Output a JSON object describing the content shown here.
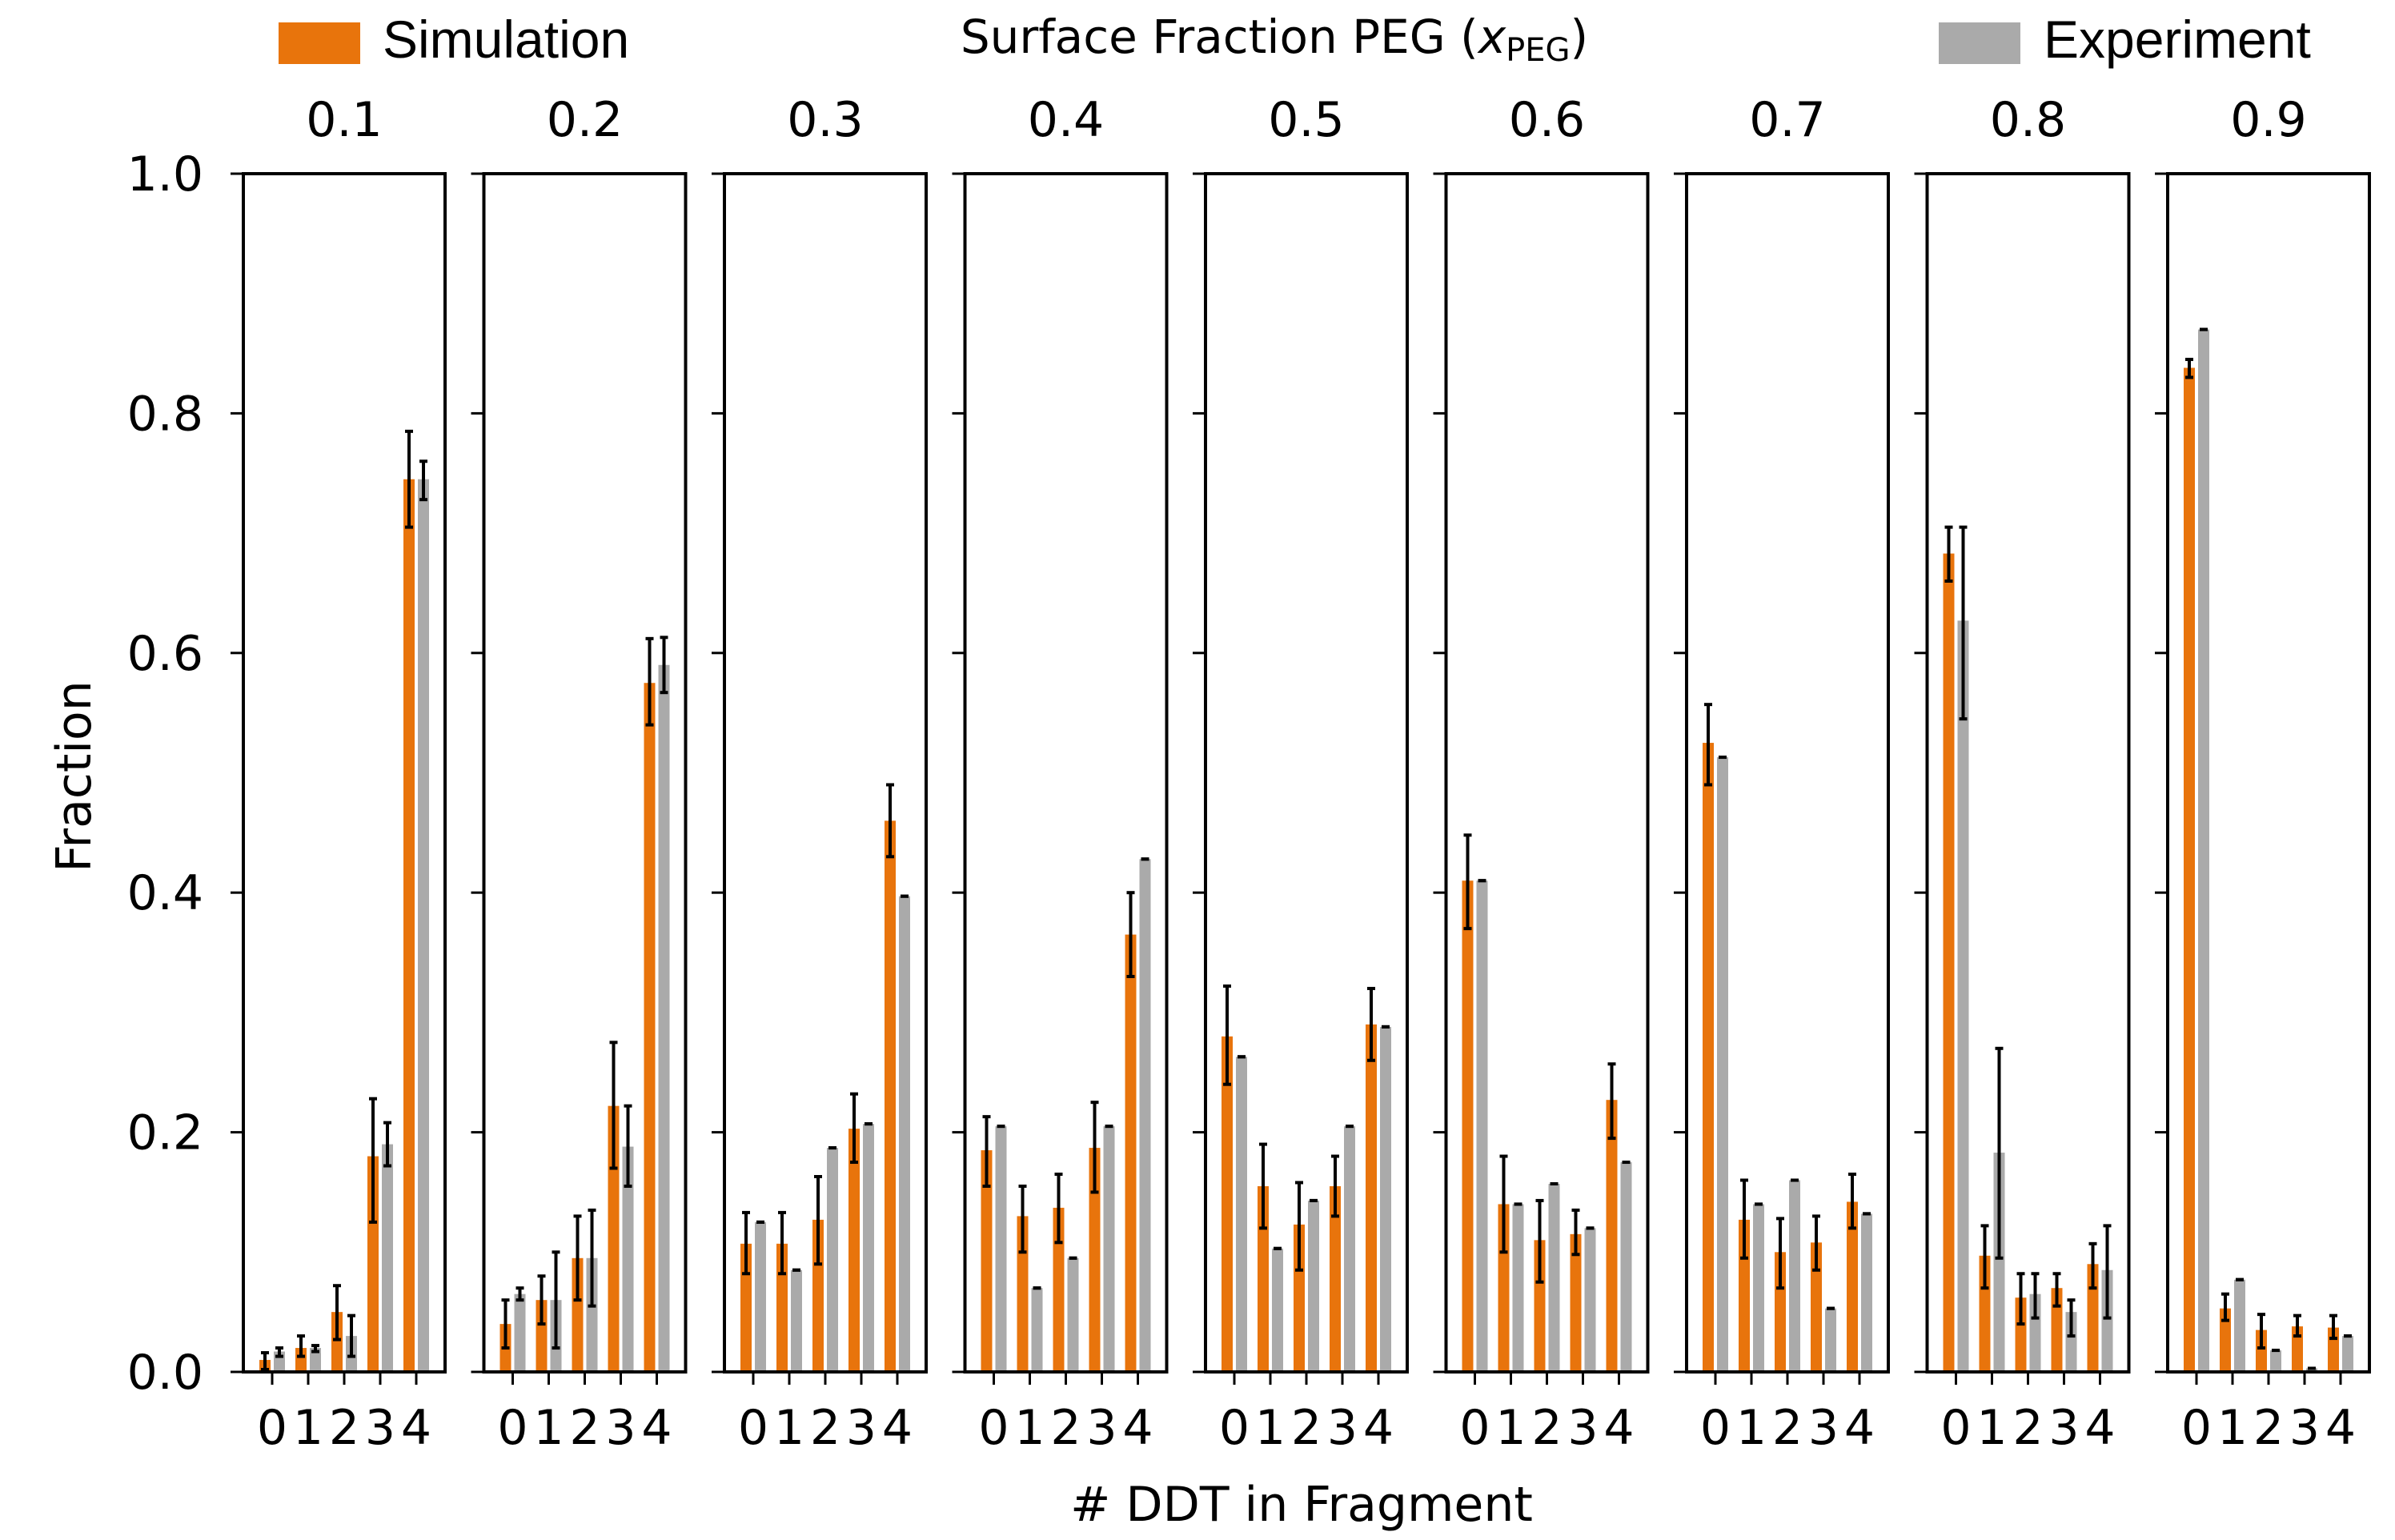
{
  "chart_data": {
    "type": "bar",
    "suptitle": {
      "text": "Surface Fraction PEG (",
      "var": "x",
      "sub": "PEG",
      "close": ")"
    },
    "xlabel": "# DDT in Fragment",
    "ylabel": "Fraction",
    "ylim": [
      0,
      1.0
    ],
    "yticks": [
      "0.0",
      "0.2",
      "0.4",
      "0.6",
      "0.8",
      "1.0"
    ],
    "categories": [
      "0",
      "1",
      "2",
      "3",
      "4"
    ],
    "legend": [
      {
        "name": "Simulation",
        "color": "#e8740c",
        "placement": "top-left"
      },
      {
        "name": "Experiment",
        "color": "#aaaaaa",
        "placement": "top-right"
      }
    ],
    "colors": {
      "simulation": "#e8740c",
      "experiment": "#aaaaaa",
      "error": "#000000"
    },
    "panels": [
      {
        "title": "0.1",
        "simulation": [
          0.01,
          0.02,
          0.05,
          0.18,
          0.745
        ],
        "sim_err": [
          [
            0.002,
            0.016
          ],
          [
            0.013,
            0.03
          ],
          [
            0.027,
            0.072
          ],
          [
            0.125,
            0.228
          ],
          [
            0.705,
            0.785
          ]
        ],
        "experiment": [
          0.017,
          0.02,
          0.03,
          0.19,
          0.745
        ],
        "exp_err": [
          [
            0.013,
            0.02
          ],
          [
            0.017,
            0.022
          ],
          [
            0.013,
            0.047
          ],
          [
            0.172,
            0.208
          ],
          [
            0.728,
            0.76
          ]
        ]
      },
      {
        "title": "0.2",
        "simulation": [
          0.04,
          0.06,
          0.095,
          0.222,
          0.575
        ],
        "sim_err": [
          [
            0.02,
            0.06
          ],
          [
            0.04,
            0.08
          ],
          [
            0.06,
            0.13
          ],
          [
            0.17,
            0.275
          ],
          [
            0.54,
            0.612
          ]
        ],
        "experiment": [
          0.065,
          0.06,
          0.095,
          0.188,
          0.59
        ],
        "exp_err": [
          [
            0.06,
            0.07
          ],
          [
            0.02,
            0.1
          ],
          [
            0.055,
            0.135
          ],
          [
            0.155,
            0.222
          ],
          [
            0.567,
            0.613
          ]
        ]
      },
      {
        "title": "0.3",
        "simulation": [
          0.107,
          0.107,
          0.127,
          0.203,
          0.46
        ],
        "sim_err": [
          [
            0.082,
            0.133
          ],
          [
            0.082,
            0.133
          ],
          [
            0.09,
            0.163
          ],
          [
            0.175,
            0.232
          ],
          [
            0.43,
            0.49
          ]
        ],
        "experiment": [
          0.125,
          0.085,
          0.187,
          0.207,
          0.397
        ],
        "exp_err": [
          [
            0.125,
            0.125
          ],
          [
            0.085,
            0.085
          ],
          [
            0.187,
            0.187
          ],
          [
            0.207,
            0.207
          ],
          [
            0.397,
            0.397
          ]
        ]
      },
      {
        "title": "0.4",
        "simulation": [
          0.185,
          0.13,
          0.137,
          0.187,
          0.365
        ],
        "sim_err": [
          [
            0.155,
            0.213
          ],
          [
            0.1,
            0.155
          ],
          [
            0.108,
            0.165
          ],
          [
            0.15,
            0.225
          ],
          [
            0.33,
            0.4
          ]
        ],
        "experiment": [
          0.205,
          0.07,
          0.095,
          0.205,
          0.428
        ],
        "exp_err": [
          [
            0.205,
            0.205
          ],
          [
            0.07,
            0.07
          ],
          [
            0.095,
            0.095
          ],
          [
            0.205,
            0.205
          ],
          [
            0.428,
            0.428
          ]
        ]
      },
      {
        "title": "0.5",
        "simulation": [
          0.28,
          0.155,
          0.123,
          0.155,
          0.29
        ],
        "sim_err": [
          [
            0.24,
            0.322
          ],
          [
            0.12,
            0.19
          ],
          [
            0.085,
            0.158
          ],
          [
            0.13,
            0.18
          ],
          [
            0.26,
            0.32
          ]
        ],
        "experiment": [
          0.263,
          0.103,
          0.143,
          0.205,
          0.288
        ],
        "exp_err": [
          [
            0.263,
            0.263
          ],
          [
            0.103,
            0.103
          ],
          [
            0.143,
            0.143
          ],
          [
            0.205,
            0.205
          ],
          [
            0.288,
            0.288
          ]
        ]
      },
      {
        "title": "0.6",
        "simulation": [
          0.41,
          0.14,
          0.11,
          0.115,
          0.227
        ],
        "sim_err": [
          [
            0.37,
            0.448
          ],
          [
            0.1,
            0.18
          ],
          [
            0.075,
            0.143
          ],
          [
            0.098,
            0.135
          ],
          [
            0.195,
            0.257
          ]
        ],
        "experiment": [
          0.41,
          0.14,
          0.157,
          0.12,
          0.175
        ],
        "exp_err": [
          [
            0.41,
            0.41
          ],
          [
            0.14,
            0.14
          ],
          [
            0.157,
            0.157
          ],
          [
            0.12,
            0.12
          ],
          [
            0.175,
            0.175
          ]
        ]
      },
      {
        "title": "0.7",
        "simulation": [
          0.525,
          0.127,
          0.1,
          0.108,
          0.142
        ],
        "sim_err": [
          [
            0.49,
            0.557
          ],
          [
            0.095,
            0.16
          ],
          [
            0.07,
            0.128
          ],
          [
            0.085,
            0.13
          ],
          [
            0.12,
            0.165
          ]
        ],
        "experiment": [
          0.513,
          0.14,
          0.16,
          0.053,
          0.132
        ],
        "exp_err": [
          [
            0.513,
            0.513
          ],
          [
            0.14,
            0.14
          ],
          [
            0.16,
            0.16
          ],
          [
            0.053,
            0.053
          ],
          [
            0.132,
            0.132
          ]
        ]
      },
      {
        "title": "0.8",
        "simulation": [
          0.683,
          0.097,
          0.062,
          0.07,
          0.09
        ],
        "sim_err": [
          [
            0.66,
            0.705
          ],
          [
            0.07,
            0.122
          ],
          [
            0.04,
            0.082
          ],
          [
            0.055,
            0.082
          ],
          [
            0.07,
            0.107
          ]
        ],
        "experiment": [
          0.627,
          0.183,
          0.065,
          0.05,
          0.085
        ],
        "exp_err": [
          [
            0.545,
            0.705
          ],
          [
            0.095,
            0.27
          ],
          [
            0.045,
            0.082
          ],
          [
            0.03,
            0.06
          ],
          [
            0.045,
            0.122
          ]
        ]
      },
      {
        "title": "0.9",
        "simulation": [
          0.838,
          0.053,
          0.035,
          0.038,
          0.037
        ],
        "sim_err": [
          [
            0.83,
            0.845
          ],
          [
            0.043,
            0.065
          ],
          [
            0.02,
            0.048
          ],
          [
            0.03,
            0.047
          ],
          [
            0.028,
            0.047
          ]
        ],
        "experiment": [
          0.87,
          0.077,
          0.018,
          0.003,
          0.03
        ],
        "exp_err": [
          [
            0.87,
            0.87
          ],
          [
            0.077,
            0.077
          ],
          [
            0.018,
            0.018
          ],
          [
            0.003,
            0.003
          ],
          [
            0.03,
            0.03
          ]
        ]
      }
    ]
  }
}
